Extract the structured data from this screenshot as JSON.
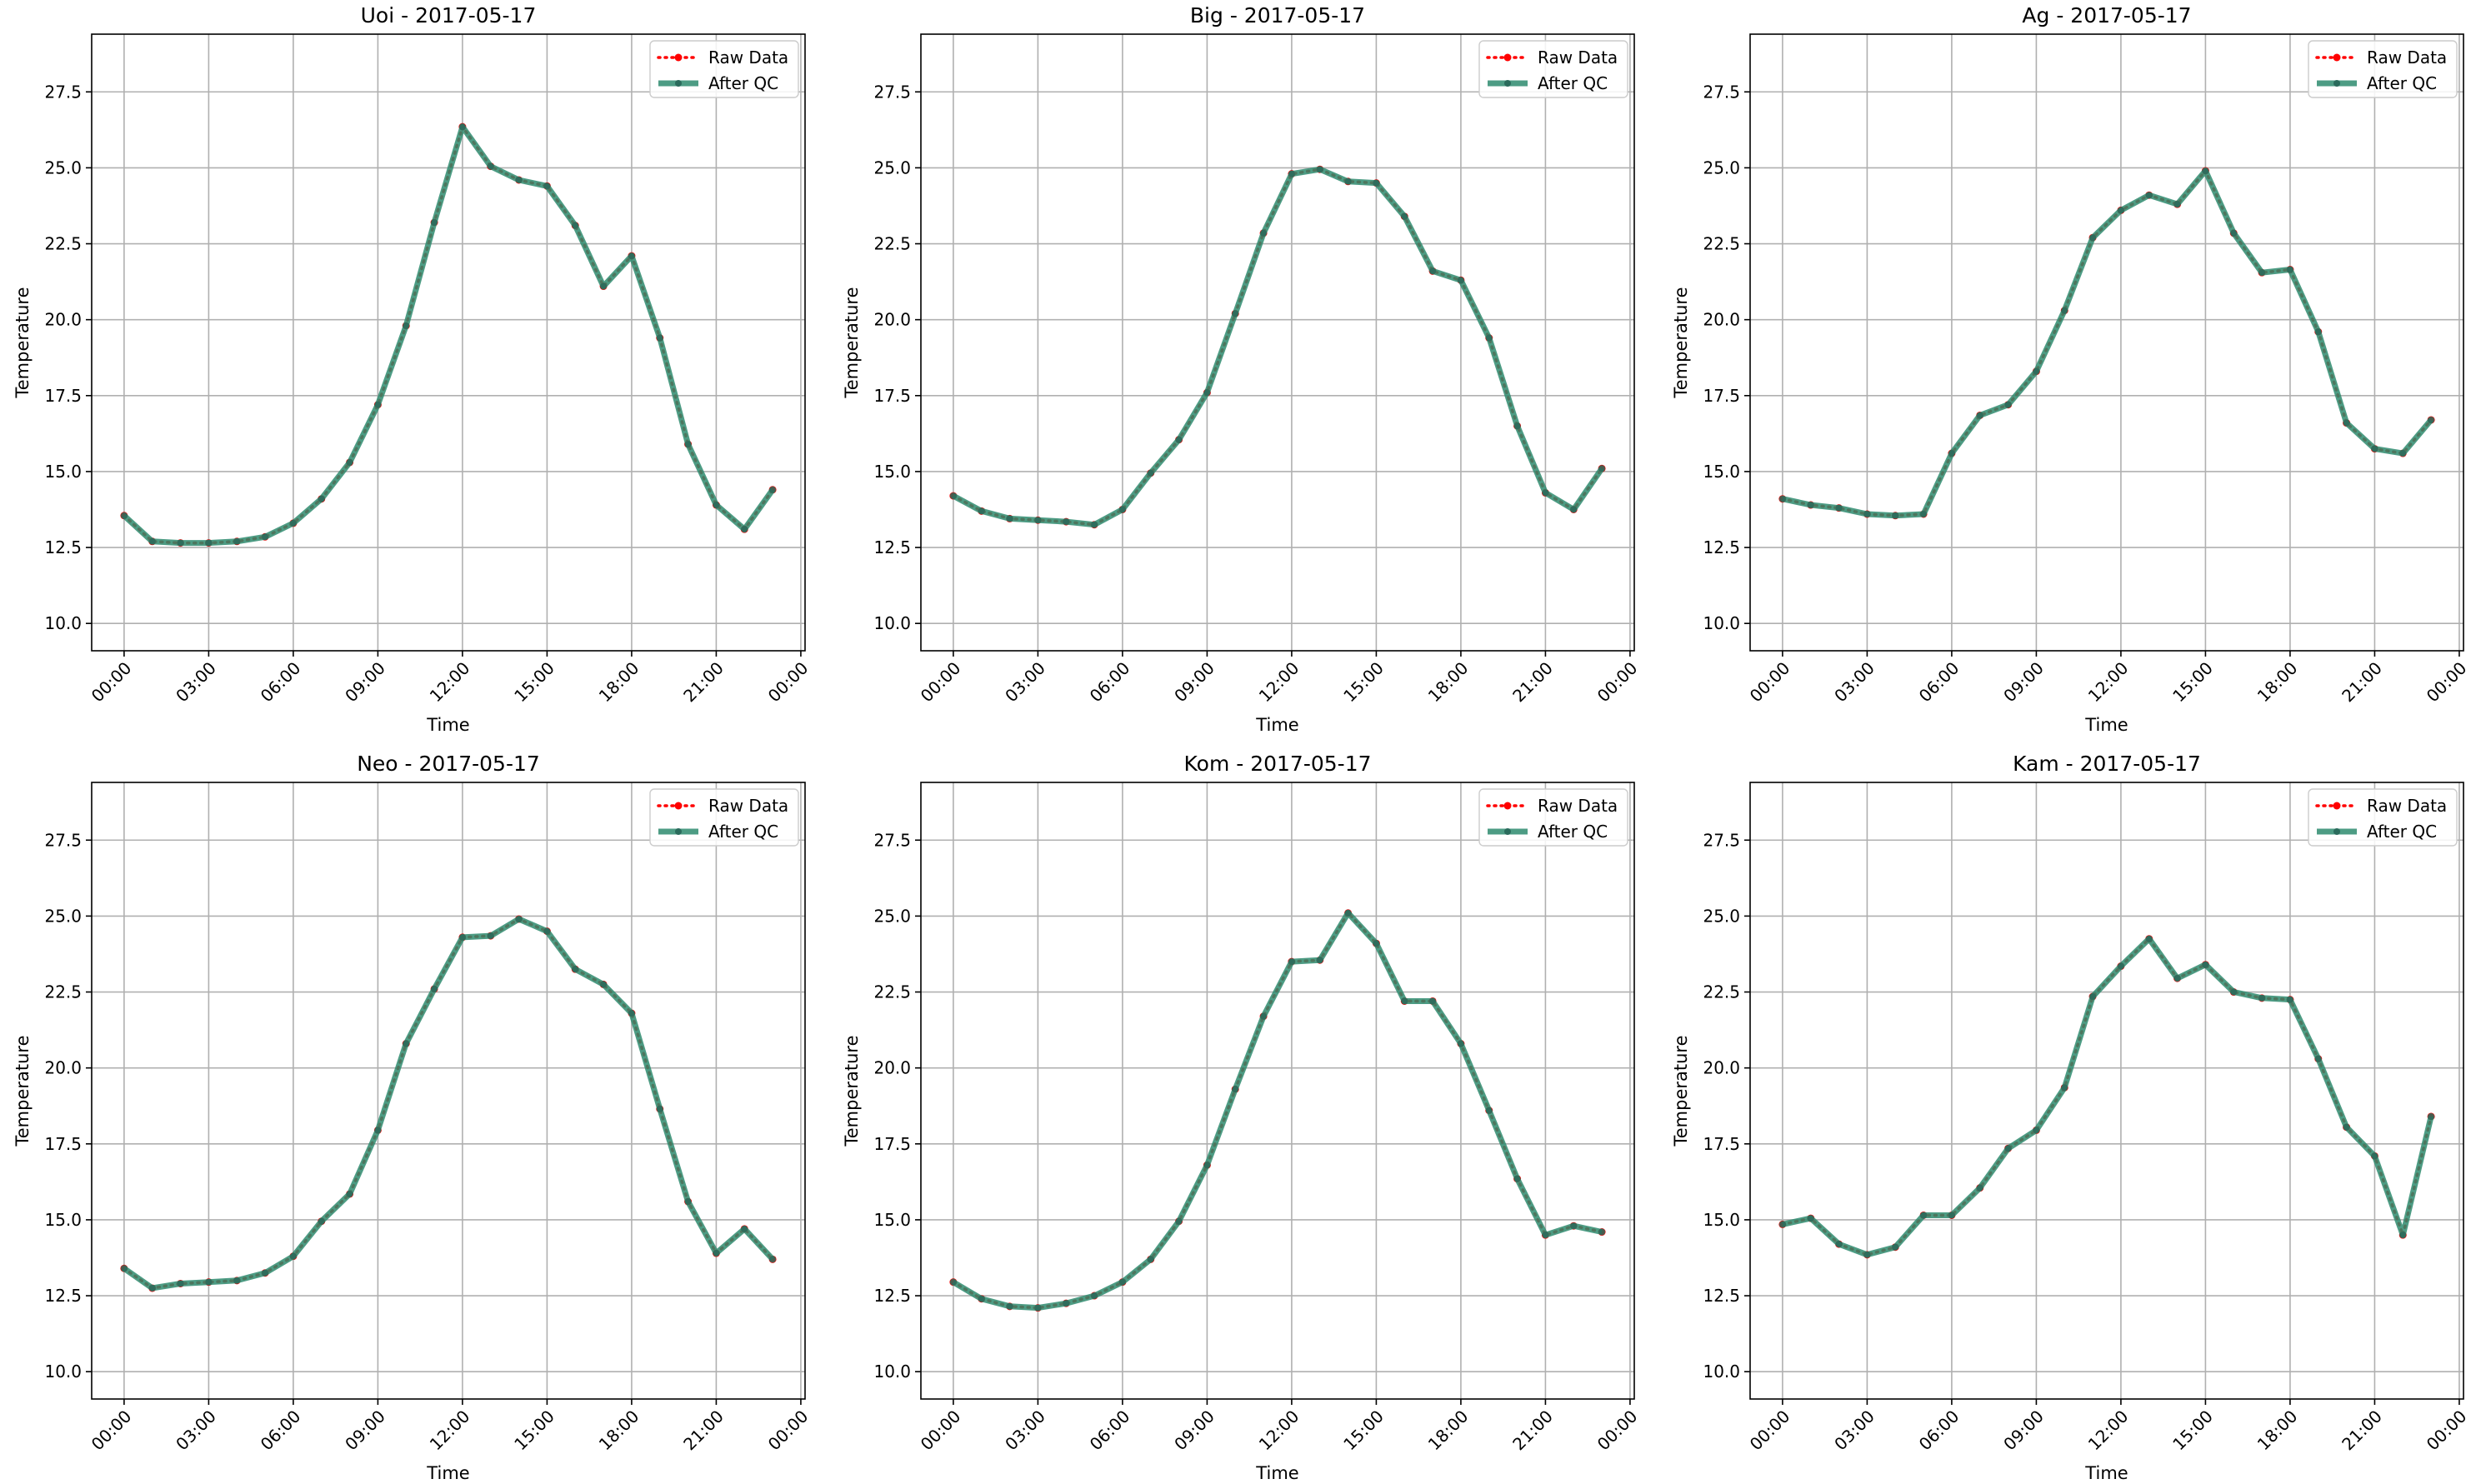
{
  "chart_data": [
    {
      "type": "line",
      "title": "Uoi - 2017-05-17",
      "xlabel": "Time",
      "ylabel": "Temperature",
      "xtick_labels": [
        "00:00",
        "03:00",
        "06:00",
        "09:00",
        "12:00",
        "15:00",
        "18:00",
        "21:00",
        "00:00"
      ],
      "xlim_hours": [
        -1.15,
        24.15
      ],
      "ylim": [
        9.1,
        29.4
      ],
      "yticks": [
        10.0,
        12.5,
        15.0,
        17.5,
        20.0,
        22.5,
        25.0,
        27.5
      ],
      "ytick_labels": [
        "10.0",
        "12.5",
        "15.0",
        "17.5",
        "20.0",
        "22.5",
        "25.0",
        "27.5"
      ],
      "grid": true,
      "legend_position": "top-right",
      "x_hours": [
        0,
        1,
        2,
        3,
        4,
        5,
        6,
        7,
        8,
        9,
        10,
        11,
        12,
        13,
        14,
        15,
        16,
        17,
        18,
        19,
        20,
        21,
        22,
        23
      ],
      "series": [
        {
          "name": "Raw Data",
          "color": "#ff0000",
          "style": "dotted",
          "values": [
            13.55,
            12.7,
            12.65,
            12.65,
            12.7,
            12.85,
            13.3,
            14.1,
            15.3,
            17.2,
            19.8,
            23.2,
            26.35,
            25.05,
            24.6,
            24.4,
            23.1,
            21.1,
            22.1,
            19.4,
            15.9,
            13.9,
            13.1,
            14.4
          ]
        },
        {
          "name": "After QC",
          "color": "#2e8b6f",
          "style": "solid",
          "values": [
            13.55,
            12.7,
            12.65,
            12.65,
            12.7,
            12.85,
            13.3,
            14.1,
            15.3,
            17.2,
            19.8,
            23.2,
            26.35,
            25.05,
            24.6,
            24.4,
            23.1,
            21.1,
            22.1,
            19.4,
            15.9,
            13.9,
            13.1,
            14.4
          ]
        }
      ]
    },
    {
      "type": "line",
      "title": "Big - 2017-05-17",
      "xlabel": "Time",
      "ylabel": "Temperature",
      "xtick_labels": [
        "00:00",
        "03:00",
        "06:00",
        "09:00",
        "12:00",
        "15:00",
        "18:00",
        "21:00",
        "00:00"
      ],
      "xlim_hours": [
        -1.15,
        24.15
      ],
      "ylim": [
        9.1,
        29.4
      ],
      "yticks": [
        10.0,
        12.5,
        15.0,
        17.5,
        20.0,
        22.5,
        25.0,
        27.5
      ],
      "ytick_labels": [
        "10.0",
        "12.5",
        "15.0",
        "17.5",
        "20.0",
        "22.5",
        "25.0",
        "27.5"
      ],
      "grid": true,
      "legend_position": "top-right",
      "x_hours": [
        0,
        1,
        2,
        3,
        4,
        5,
        6,
        7,
        8,
        9,
        10,
        11,
        12,
        13,
        14,
        15,
        16,
        17,
        18,
        19,
        20,
        21,
        22,
        23
      ],
      "series": [
        {
          "name": "Raw Data",
          "color": "#ff0000",
          "style": "dotted",
          "values": [
            14.2,
            13.7,
            13.45,
            13.4,
            13.35,
            13.25,
            13.75,
            14.95,
            16.05,
            17.6,
            20.2,
            22.85,
            24.8,
            24.95,
            24.55,
            24.5,
            23.4,
            21.6,
            21.3,
            19.4,
            16.5,
            14.3,
            13.75,
            15.1
          ]
        },
        {
          "name": "After QC",
          "color": "#2e8b6f",
          "style": "solid",
          "values": [
            14.2,
            13.7,
            13.45,
            13.4,
            13.35,
            13.25,
            13.75,
            14.95,
            16.05,
            17.6,
            20.2,
            22.85,
            24.8,
            24.95,
            24.55,
            24.5,
            23.4,
            21.6,
            21.3,
            19.4,
            16.5,
            14.3,
            13.75,
            15.1
          ]
        }
      ]
    },
    {
      "type": "line",
      "title": "Ag - 2017-05-17",
      "xlabel": "Time",
      "ylabel": "Temperature",
      "xtick_labels": [
        "00:00",
        "03:00",
        "06:00",
        "09:00",
        "12:00",
        "15:00",
        "18:00",
        "21:00",
        "00:00"
      ],
      "xlim_hours": [
        -1.15,
        24.15
      ],
      "ylim": [
        9.1,
        29.4
      ],
      "yticks": [
        10.0,
        12.5,
        15.0,
        17.5,
        20.0,
        22.5,
        25.0,
        27.5
      ],
      "ytick_labels": [
        "10.0",
        "12.5",
        "15.0",
        "17.5",
        "20.0",
        "22.5",
        "25.0",
        "27.5"
      ],
      "grid": true,
      "legend_position": "top-right",
      "x_hours": [
        0,
        1,
        2,
        3,
        4,
        5,
        6,
        7,
        8,
        9,
        10,
        11,
        12,
        13,
        14,
        15,
        16,
        17,
        18,
        19,
        20,
        21,
        22,
        23
      ],
      "series": [
        {
          "name": "Raw Data",
          "color": "#ff0000",
          "style": "dotted",
          "values": [
            14.1,
            13.9,
            13.8,
            13.6,
            13.55,
            13.6,
            15.6,
            16.85,
            17.2,
            18.3,
            20.3,
            22.7,
            23.6,
            24.1,
            23.8,
            24.9,
            22.85,
            21.55,
            21.65,
            19.6,
            16.6,
            15.75,
            15.6,
            16.7
          ]
        },
        {
          "name": "After QC",
          "color": "#2e8b6f",
          "style": "solid",
          "values": [
            14.1,
            13.9,
            13.8,
            13.6,
            13.55,
            13.6,
            15.6,
            16.85,
            17.2,
            18.3,
            20.3,
            22.7,
            23.6,
            24.1,
            23.8,
            24.9,
            22.85,
            21.55,
            21.65,
            19.6,
            16.6,
            15.75,
            15.6,
            16.7
          ]
        }
      ]
    },
    {
      "type": "line",
      "title": "Neo - 2017-05-17",
      "xlabel": "Time",
      "ylabel": "Temperature",
      "xtick_labels": [
        "00:00",
        "03:00",
        "06:00",
        "09:00",
        "12:00",
        "15:00",
        "18:00",
        "21:00",
        "00:00"
      ],
      "xlim_hours": [
        -1.15,
        24.15
      ],
      "ylim": [
        9.1,
        29.4
      ],
      "yticks": [
        10.0,
        12.5,
        15.0,
        17.5,
        20.0,
        22.5,
        25.0,
        27.5
      ],
      "ytick_labels": [
        "10.0",
        "12.5",
        "15.0",
        "17.5",
        "20.0",
        "22.5",
        "25.0",
        "27.5"
      ],
      "grid": true,
      "legend_position": "top-right",
      "x_hours": [
        0,
        1,
        2,
        3,
        4,
        5,
        6,
        7,
        8,
        9,
        10,
        11,
        12,
        13,
        14,
        15,
        16,
        17,
        18,
        19,
        20,
        21,
        22,
        23
      ],
      "series": [
        {
          "name": "Raw Data",
          "color": "#ff0000",
          "style": "dotted",
          "values": [
            13.4,
            12.75,
            12.9,
            12.95,
            13.0,
            13.25,
            13.8,
            14.95,
            15.85,
            17.95,
            20.8,
            22.6,
            24.3,
            24.35,
            24.9,
            24.5,
            23.25,
            22.75,
            21.8,
            18.65,
            15.6,
            13.9,
            14.7,
            13.7
          ]
        },
        {
          "name": "After QC",
          "color": "#2e8b6f",
          "style": "solid",
          "values": [
            13.4,
            12.75,
            12.9,
            12.95,
            13.0,
            13.25,
            13.8,
            14.95,
            15.85,
            17.95,
            20.8,
            22.6,
            24.3,
            24.35,
            24.9,
            24.5,
            23.25,
            22.75,
            21.8,
            18.65,
            15.6,
            13.9,
            14.7,
            13.7
          ]
        }
      ]
    },
    {
      "type": "line",
      "title": "Kom - 2017-05-17",
      "xlabel": "Time",
      "ylabel": "Temperature",
      "xtick_labels": [
        "00:00",
        "03:00",
        "06:00",
        "09:00",
        "12:00",
        "15:00",
        "18:00",
        "21:00",
        "00:00"
      ],
      "xlim_hours": [
        -1.15,
        24.15
      ],
      "ylim": [
        9.1,
        29.4
      ],
      "yticks": [
        10.0,
        12.5,
        15.0,
        17.5,
        20.0,
        22.5,
        25.0,
        27.5
      ],
      "ytick_labels": [
        "10.0",
        "12.5",
        "15.0",
        "17.5",
        "20.0",
        "22.5",
        "25.0",
        "27.5"
      ],
      "grid": true,
      "legend_position": "top-right",
      "x_hours": [
        0,
        1,
        2,
        3,
        4,
        5,
        6,
        7,
        8,
        9,
        10,
        11,
        12,
        13,
        14,
        15,
        16,
        17,
        18,
        19,
        20,
        21,
        22,
        23
      ],
      "series": [
        {
          "name": "Raw Data",
          "color": "#ff0000",
          "style": "dotted",
          "values": [
            12.95,
            12.4,
            12.15,
            12.1,
            12.25,
            12.5,
            12.95,
            13.7,
            14.95,
            16.8,
            19.3,
            21.7,
            23.5,
            23.55,
            25.1,
            24.1,
            22.2,
            22.2,
            20.8,
            18.6,
            16.35,
            14.5,
            14.8,
            14.6
          ]
        },
        {
          "name": "After QC",
          "color": "#2e8b6f",
          "style": "solid",
          "values": [
            12.95,
            12.4,
            12.15,
            12.1,
            12.25,
            12.5,
            12.95,
            13.7,
            14.95,
            16.8,
            19.3,
            21.7,
            23.5,
            23.55,
            25.1,
            24.1,
            22.2,
            22.2,
            20.8,
            18.6,
            16.35,
            14.5,
            14.8,
            14.6
          ]
        }
      ]
    },
    {
      "type": "line",
      "title": "Kam - 2017-05-17",
      "xlabel": "Time",
      "ylabel": "Temperature",
      "xtick_labels": [
        "00:00",
        "03:00",
        "06:00",
        "09:00",
        "12:00",
        "15:00",
        "18:00",
        "21:00",
        "00:00"
      ],
      "xlim_hours": [
        -1.15,
        24.15
      ],
      "ylim": [
        9.1,
        29.4
      ],
      "yticks": [
        10.0,
        12.5,
        15.0,
        17.5,
        20.0,
        22.5,
        25.0,
        27.5
      ],
      "ytick_labels": [
        "10.0",
        "12.5",
        "15.0",
        "17.5",
        "20.0",
        "22.5",
        "25.0",
        "27.5"
      ],
      "grid": true,
      "legend_position": "top-right",
      "x_hours": [
        0,
        1,
        2,
        3,
        4,
        5,
        6,
        7,
        8,
        9,
        10,
        11,
        12,
        13,
        14,
        15,
        16,
        17,
        18,
        19,
        20,
        21,
        22,
        23
      ],
      "series": [
        {
          "name": "Raw Data",
          "color": "#ff0000",
          "style": "dotted",
          "values": [
            14.85,
            15.05,
            14.2,
            13.85,
            14.1,
            15.15,
            15.15,
            16.05,
            17.35,
            17.95,
            19.35,
            22.35,
            23.35,
            24.25,
            22.95,
            23.4,
            22.5,
            22.3,
            22.25,
            20.3,
            18.05,
            17.1,
            14.5,
            18.4
          ]
        },
        {
          "name": "After QC",
          "color": "#2e8b6f",
          "style": "solid",
          "values": [
            14.85,
            15.05,
            14.2,
            13.85,
            14.1,
            15.15,
            15.15,
            16.05,
            17.35,
            17.95,
            19.35,
            22.35,
            23.35,
            24.25,
            22.95,
            23.4,
            22.5,
            22.3,
            22.25,
            20.3,
            18.05,
            17.1,
            14.5,
            18.4
          ]
        }
      ]
    }
  ]
}
